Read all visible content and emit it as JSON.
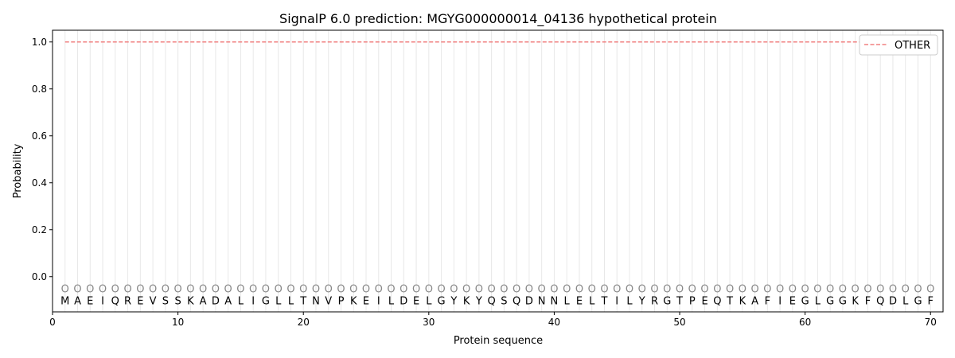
{
  "chart_data": {
    "type": "line",
    "title": "SignalP 6.0 prediction: MGYG000000014_04136 hypothetical protein",
    "xlabel": "Protein sequence",
    "ylabel": "Probability",
    "xlim": [
      0,
      71
    ],
    "ylim": [
      -0.15,
      1.05
    ],
    "xticks": [
      0,
      10,
      20,
      30,
      40,
      50,
      60,
      70
    ],
    "yticks": [
      0.0,
      0.2,
      0.4,
      0.6,
      0.8,
      1.0
    ],
    "ytick_labels": [
      "0.0",
      "0.2",
      "0.4",
      "0.6",
      "0.8",
      "1.0"
    ],
    "grid": "vertical lines at each residue",
    "legend_placement": "top-right",
    "sequence": "MAEIQREVSSKADALIGLLTNVPKEILDELGYKYQSQDNNLELTILYRGTPEQTKAFIEGLGGKFQDLGF",
    "region_label": "O",
    "region_marker_y": -0.05,
    "series": [
      {
        "name": "OTHER",
        "color": "#f08080",
        "style": "dashed",
        "x_range": [
          1,
          70
        ],
        "value": 1.0
      }
    ]
  }
}
